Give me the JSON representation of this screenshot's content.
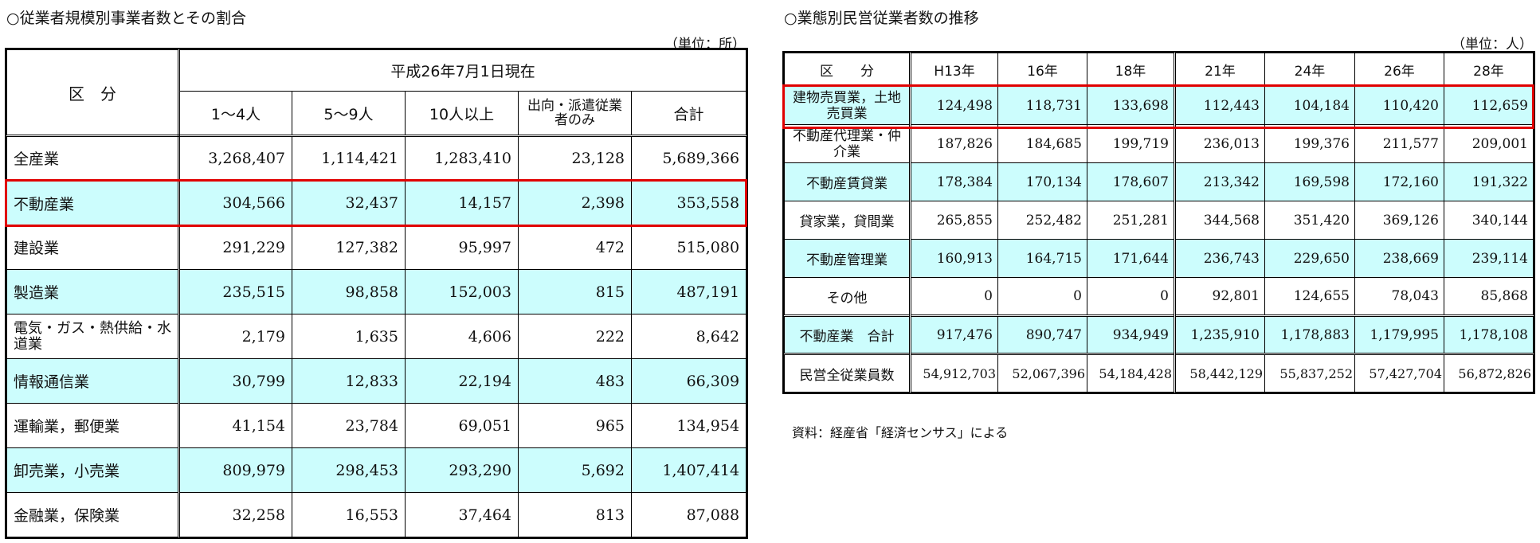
{
  "left": {
    "title": "○従業者規模別事業者数とその割合",
    "unit": "（単位：所）",
    "header": {
      "category": "区　分",
      "date": "平成26年7月1日現在",
      "columns": [
        "1～4人",
        "5～9人",
        "10人以上",
        "出向・派遣従業者のみ",
        "合計"
      ]
    },
    "rows": [
      {
        "label": "全産業",
        "values": [
          "3,268,407",
          "1,114,421",
          "1,283,410",
          "23,128",
          "5,689,366"
        ],
        "highlight": false
      },
      {
        "label": "不動産業",
        "values": [
          "304,566",
          "32,437",
          "14,157",
          "2,398",
          "353,558"
        ],
        "highlight": true
      },
      {
        "label": "建設業",
        "values": [
          "291,229",
          "127,382",
          "95,997",
          "472",
          "515,080"
        ],
        "highlight": false
      },
      {
        "label": "製造業",
        "values": [
          "235,515",
          "98,858",
          "152,003",
          "815",
          "487,191"
        ],
        "highlight": true
      },
      {
        "label": "電気・ガス・熱供給・水道業",
        "values": [
          "2,179",
          "1,635",
          "4,606",
          "222",
          "8,642"
        ],
        "highlight": false
      },
      {
        "label": "情報通信業",
        "values": [
          "30,799",
          "12,833",
          "22,194",
          "483",
          "66,309"
        ],
        "highlight": true
      },
      {
        "label": "運輸業，郵便業",
        "values": [
          "41,154",
          "23,784",
          "69,051",
          "965",
          "134,954"
        ],
        "highlight": false
      },
      {
        "label": "卸売業，小売業",
        "values": [
          "809,979",
          "298,453",
          "293,290",
          "5,692",
          "1,407,414"
        ],
        "highlight": true
      },
      {
        "label": "金融業，保険業",
        "values": [
          "32,258",
          "16,553",
          "37,464",
          "813",
          "87,088"
        ],
        "highlight": false
      }
    ]
  },
  "right": {
    "title": "○業態別民営従業者数の推移",
    "unit": "（単位：人）",
    "header": {
      "category": "区　　分",
      "columns": [
        "H13年",
        "16年",
        "18年",
        "21年",
        "24年",
        "26年",
        "28年"
      ]
    },
    "rows": [
      {
        "label": "建物売買業，土地売買業",
        "values": [
          "124,498",
          "118,731",
          "133,698",
          "112,443",
          "104,184",
          "110,420",
          "112,659"
        ],
        "highlight": true
      },
      {
        "label": "不動産代理業・仲介業",
        "values": [
          "187,826",
          "184,685",
          "199,719",
          "236,013",
          "199,376",
          "211,577",
          "209,001"
        ],
        "highlight": false
      },
      {
        "label": "不動産賃貸業",
        "values": [
          "178,384",
          "170,134",
          "178,607",
          "213,342",
          "169,598",
          "172,160",
          "191,322"
        ],
        "highlight": true
      },
      {
        "label": "貸家業，貸間業",
        "values": [
          "265,855",
          "252,482",
          "251,281",
          "344,568",
          "351,420",
          "369,126",
          "340,144"
        ],
        "highlight": false
      },
      {
        "label": "不動産管理業",
        "values": [
          "160,913",
          "164,715",
          "171,644",
          "236,743",
          "229,650",
          "238,669",
          "239,114"
        ],
        "highlight": true
      },
      {
        "label": "その他",
        "values": [
          "0",
          "0",
          "0",
          "92,801",
          "124,655",
          "78,043",
          "85,868"
        ],
        "highlight": false
      }
    ],
    "total": {
      "label": "不動産業　合計",
      "values": [
        "917,476",
        "890,747",
        "934,949",
        "1,235,910",
        "1,178,883",
        "1,179,995",
        "1,178,108"
      ]
    },
    "all": {
      "label": "民営全従業員数",
      "values": [
        "54,912,703",
        "52,067,396",
        "54,184,428",
        "58,442,129",
        "55,837,252",
        "57,427,704",
        "56,872,826"
      ]
    },
    "source": "資料：経産省「経済センサス」による"
  },
  "colors": {
    "highlight_fill": "#ccfdfd",
    "emphasis_box": "#e00000"
  }
}
